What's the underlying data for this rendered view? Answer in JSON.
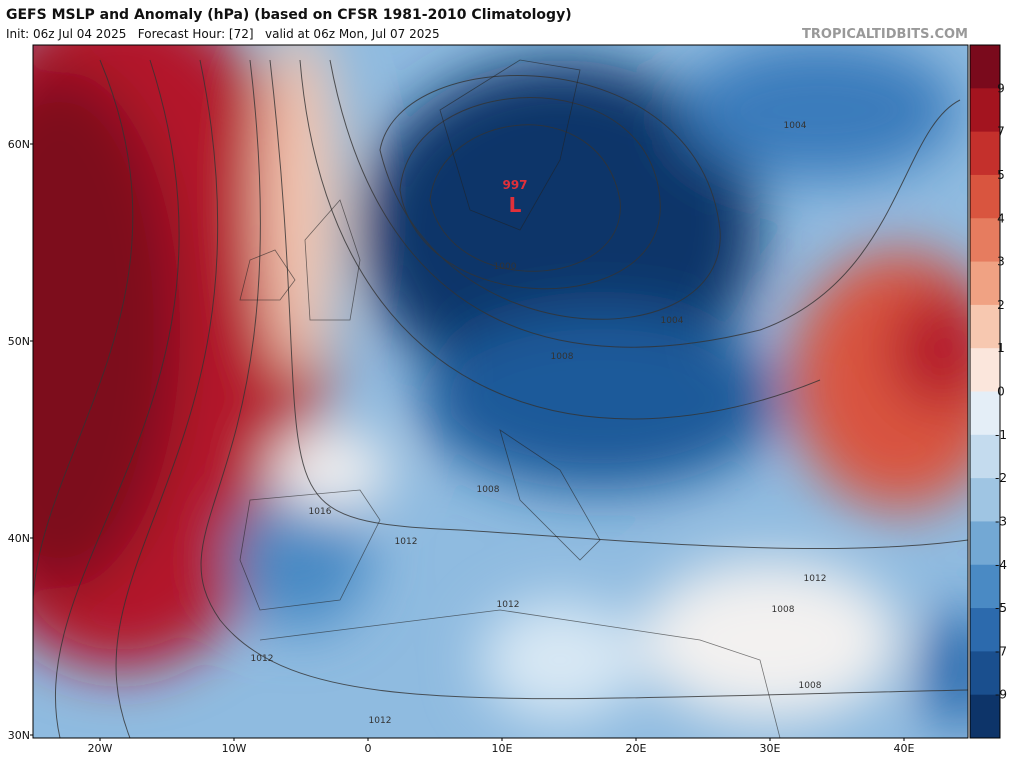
{
  "header": {
    "title": "GEFS MSLP and Anomaly (hPa) (based on CFSR 1981-2010 Climatology)",
    "subtitle": "Init: 06z Jul 04 2025   Forecast Hour: [72]   valid at 06z Mon, Jul 07 2025",
    "site": "TROPICALTIDBITS.COM"
  },
  "map": {
    "lat_labels": [
      "60N",
      "50N",
      "40N",
      "30N"
    ],
    "lon_labels": [
      "20W",
      "10W",
      "0",
      "10E",
      "20E",
      "30E",
      "40E"
    ],
    "low": {
      "pressure": "997",
      "symbol": "L"
    },
    "isobar_labels": [
      "1004",
      "1000",
      "1004",
      "1008",
      "1008",
      "1016",
      "1012",
      "1012",
      "1008",
      "1012",
      "1012",
      "1008",
      "1012"
    ]
  },
  "colorbar": {
    "labels": [
      "9",
      "7",
      "5",
      "4",
      "3",
      "2",
      "1",
      "0",
      "-1",
      "-2",
      "-3",
      "-4",
      "-5",
      "-7",
      "-9"
    ],
    "colors": [
      "#7a0a1c",
      "#a3141f",
      "#c4302c",
      "#d9553f",
      "#e67c5f",
      "#f0a283",
      "#f7c8b0",
      "#fbe6dc",
      "#e4eef7",
      "#c4dbee",
      "#9fc5e3",
      "#73a8d4",
      "#4a8ac4",
      "#2c6aad",
      "#1a4f8e",
      "#0d3469"
    ]
  }
}
